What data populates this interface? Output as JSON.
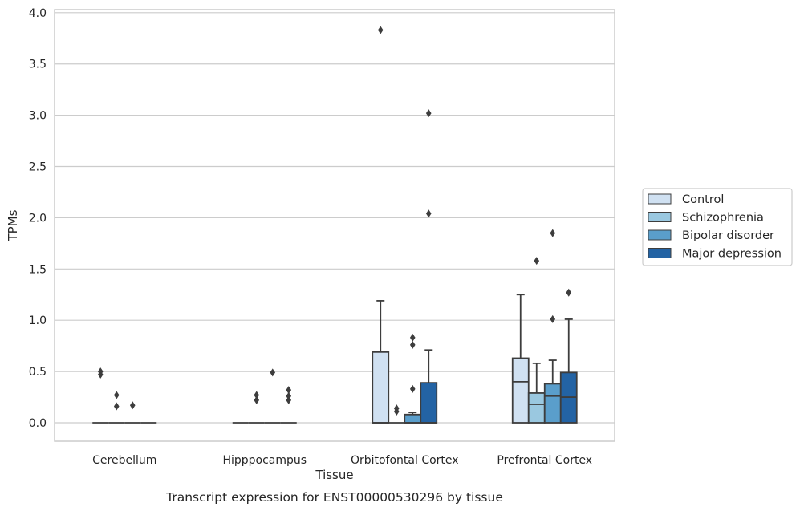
{
  "chart_data": {
    "type": "box",
    "caption": "Transcript expression for ENST00000530296 by tissue",
    "xlabel": "Tissue",
    "ylabel": "TPMs",
    "ylim": [
      -0.18,
      4.03
    ],
    "yticks": [
      "0.0",
      "0.5",
      "1.0",
      "1.5",
      "2.0",
      "2.5",
      "3.0",
      "3.5",
      "4.0"
    ],
    "grid": true,
    "legend_position": "right",
    "categories": [
      "Cerebellum",
      "Hipppocampus",
      "Orbitofontal Cortex",
      "Prefrontal Cortex"
    ],
    "series": [
      {
        "name": "Control",
        "color": "#d0e1f2",
        "boxes": [
          {
            "min": 0,
            "q1": 0,
            "median": 0,
            "q3": 0,
            "max": 0,
            "outliers": [
              0.47,
              0.5
            ]
          },
          {
            "min": 0,
            "q1": 0,
            "median": 0,
            "q3": 0,
            "max": 0,
            "outliers": []
          },
          {
            "min": 0,
            "q1": 0,
            "median": 0,
            "q3": 0.69,
            "max": 1.19,
            "outliers": [
              3.83
            ]
          },
          {
            "min": 0,
            "q1": 0,
            "median": 0.4,
            "q3": 0.63,
            "max": 1.25,
            "outliers": []
          }
        ]
      },
      {
        "name": "Schizophrenia",
        "color": "#9ac8e0",
        "boxes": [
          {
            "min": 0,
            "q1": 0,
            "median": 0,
            "q3": 0,
            "max": 0,
            "outliers": [
              0.16,
              0.27
            ]
          },
          {
            "min": 0,
            "q1": 0,
            "median": 0,
            "q3": 0,
            "max": 0,
            "outliers": [
              0.22,
              0.27
            ]
          },
          {
            "min": 0,
            "q1": 0,
            "median": 0,
            "q3": 0,
            "max": 0,
            "outliers": [
              0.11,
              0.14
            ]
          },
          {
            "min": 0,
            "q1": 0,
            "median": 0.18,
            "q3": 0.29,
            "max": 0.58,
            "outliers": [
              1.58
            ]
          }
        ]
      },
      {
        "name": "Bipolar disorder",
        "color": "#5a9ecb",
        "boxes": [
          {
            "min": 0,
            "q1": 0,
            "median": 0,
            "q3": 0,
            "max": 0,
            "outliers": [
              0.17
            ]
          },
          {
            "min": 0,
            "q1": 0,
            "median": 0,
            "q3": 0,
            "max": 0,
            "outliers": [
              0.49
            ]
          },
          {
            "min": 0,
            "q1": 0,
            "median": 0,
            "q3": 0.08,
            "max": 0.1,
            "outliers": [
              0.33,
              0.76,
              0.83
            ]
          },
          {
            "min": 0,
            "q1": 0,
            "median": 0.26,
            "q3": 0.38,
            "max": 0.61,
            "outliers": [
              1.01,
              1.85
            ]
          }
        ]
      },
      {
        "name": "Major depression",
        "color": "#2363a4",
        "boxes": [
          {
            "min": 0,
            "q1": 0,
            "median": 0,
            "q3": 0,
            "max": 0,
            "outliers": []
          },
          {
            "min": 0,
            "q1": 0,
            "median": 0,
            "q3": 0,
            "max": 0,
            "outliers": [
              0.22,
              0.26,
              0.32
            ]
          },
          {
            "min": 0,
            "q1": 0,
            "median": 0,
            "q3": 0.39,
            "max": 0.71,
            "outliers": [
              2.04,
              3.02
            ]
          },
          {
            "min": 0,
            "q1": 0,
            "median": 0.25,
            "q3": 0.49,
            "max": 1.01,
            "outliers": [
              1.27
            ]
          }
        ]
      }
    ]
  }
}
